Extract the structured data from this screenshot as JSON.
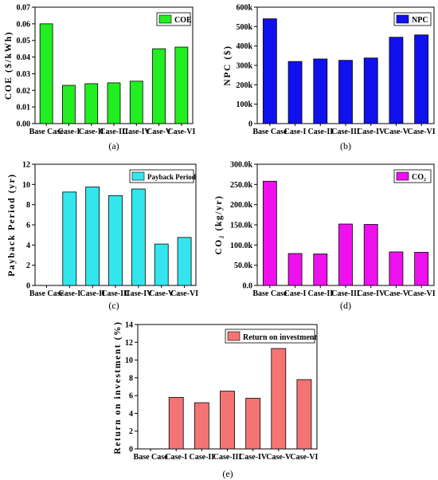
{
  "chart_data": [
    {
      "panel": "(a)",
      "type": "bar",
      "categories": [
        "Base Case",
        "Case-I",
        "Case-II",
        "Case-III",
        "Case-IV",
        "Case-V",
        "Case-VI"
      ],
      "series": [
        {
          "name": "COE",
          "values": [
            0.06,
            0.023,
            0.024,
            0.0245,
            0.0255,
            0.045,
            0.046
          ],
          "color": "#22ee22"
        }
      ],
      "ylabel": "COE ($/kWh)",
      "ylim": [
        0,
        0.07
      ],
      "yticks": [
        0.0,
        0.01,
        0.02,
        0.03,
        0.04,
        0.05,
        0.06,
        0.07
      ],
      "ytick_labels": [
        "0.00",
        "0.01",
        "0.02",
        "0.03",
        "0.04",
        "0.05",
        "0.06",
        "0.07"
      ],
      "legend": "top-right"
    },
    {
      "panel": "(b)",
      "type": "bar",
      "categories": [
        "Base Case",
        "Case-I",
        "Case-II",
        "Case-III",
        "Case-IV",
        "Case-V",
        "Case-VI"
      ],
      "series": [
        {
          "name": "NPC",
          "values": [
            540000,
            320000,
            333000,
            326000,
            338000,
            445000,
            457000
          ],
          "color": "#1111ee"
        }
      ],
      "ylabel": "NPC ($)",
      "ylim": [
        0,
        600000
      ],
      "yticks": [
        0,
        100000,
        200000,
        300000,
        400000,
        500000,
        600000
      ],
      "ytick_labels": [
        "0",
        "100k",
        "200k",
        "300k",
        "400k",
        "500k",
        "600k"
      ],
      "legend": "top-right"
    },
    {
      "panel": "(c)",
      "type": "bar",
      "categories": [
        "Base Case",
        "Case-I",
        "Case-II",
        "Case-III",
        "Case-IV",
        "Case-V",
        "Case-VI"
      ],
      "series": [
        {
          "name": "Payback Period",
          "values": [
            0,
            9.25,
            9.75,
            8.9,
            9.55,
            4.1,
            4.75
          ],
          "color": "#33e6ee"
        }
      ],
      "ylabel": "Payback Period (yr)",
      "ylim": [
        0,
        12
      ],
      "yticks": [
        0,
        2,
        4,
        6,
        8,
        10,
        12
      ],
      "ytick_labels": [
        "0",
        "2",
        "4",
        "6",
        "8",
        "10",
        "12"
      ],
      "legend": "top-right"
    },
    {
      "panel": "(d)",
      "type": "bar",
      "categories": [
        "Base Case",
        "Case-I",
        "Case-II",
        "Case-III",
        "Case-IV",
        "Case-V",
        "Case-VI"
      ],
      "series": [
        {
          "name": "CO₂",
          "values": [
            258000,
            79000,
            78000,
            152000,
            151000,
            83000,
            82000
          ],
          "color": "#ee11ee"
        }
      ],
      "ylabel": "CO₂ (kg/yr)",
      "ylim": [
        0,
        300000
      ],
      "yticks": [
        0,
        50000,
        100000,
        150000,
        200000,
        250000,
        300000
      ],
      "ytick_labels": [
        "0.0",
        "50.0k",
        "100.0k",
        "150.0k",
        "200.0k",
        "250.0k",
        "300.0k"
      ],
      "legend": "top-right"
    },
    {
      "panel": "(e)",
      "type": "bar",
      "categories": [
        "Base Case",
        "Case-I",
        "Case-II",
        "Case-III",
        "Case-IV",
        "Case-V",
        "Case-VI"
      ],
      "series": [
        {
          "name": "Return on investment",
          "values": [
            0,
            5.8,
            5.2,
            6.5,
            5.7,
            11.3,
            7.8
          ],
          "color": "#f47474"
        }
      ],
      "ylabel": "Return on investment (%)",
      "ylim": [
        0,
        14
      ],
      "yticks": [
        0,
        2,
        4,
        6,
        8,
        10,
        12,
        14
      ],
      "ytick_labels": [
        "0",
        "2",
        "4",
        "6",
        "8",
        "10",
        "12",
        "14"
      ],
      "legend": "top-right"
    }
  ]
}
